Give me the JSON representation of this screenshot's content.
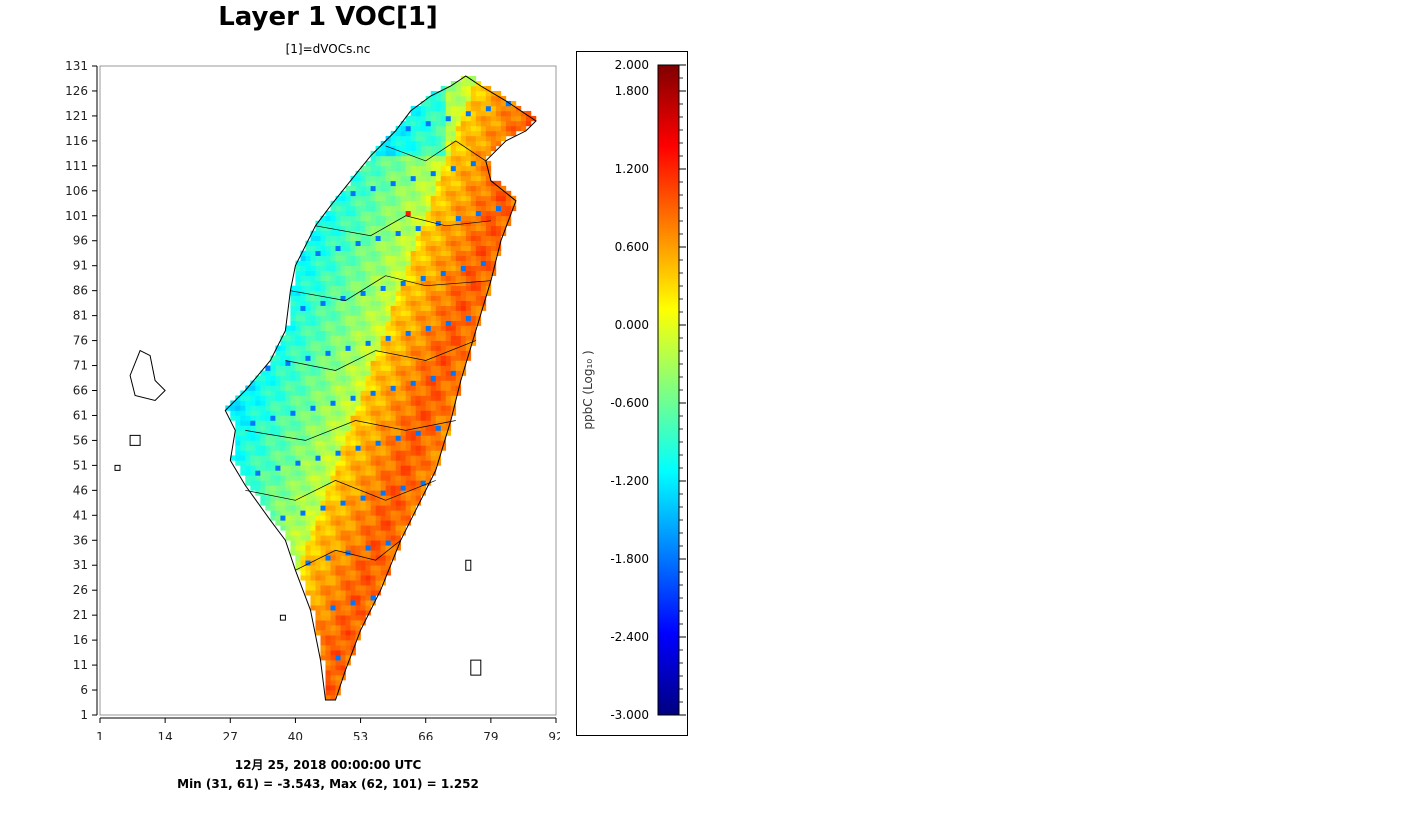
{
  "chart_data": {
    "type": "heatmap",
    "title": "Layer 1 VOC[1]",
    "subtitle": "[1]=dVOCs.nc",
    "x_ticks": [
      "1",
      "14",
      "27",
      "40",
      "53",
      "66",
      "79",
      "92"
    ],
    "y_ticks": [
      "1",
      "6",
      "11",
      "16",
      "21",
      "26",
      "31",
      "36",
      "41",
      "46",
      "51",
      "56",
      "61",
      "66",
      "71",
      "76",
      "81",
      "86",
      "91",
      "96",
      "101",
      "106",
      "111",
      "116",
      "121",
      "126",
      "131"
    ],
    "xlim": [
      1,
      92
    ],
    "ylim": [
      1,
      131
    ],
    "colorbar": {
      "label": "ppbC (Log₁₀ )",
      "range": [
        -3.0,
        2.0
      ],
      "ticks": [
        "2.000",
        "1.800",
        "1.200",
        "0.600",
        "0.000",
        "-0.600",
        "-1.200",
        "-1.800",
        "-2.400",
        "-3.000"
      ],
      "tick_values": [
        2.0,
        1.8,
        1.2,
        0.6,
        0.0,
        -0.6,
        -1.2,
        -1.8,
        -2.4,
        -3.0
      ],
      "colors": [
        "#000080",
        "#0000ff",
        "#0080ff",
        "#00ffff",
        "#80ff80",
        "#ffff00",
        "#ff8000",
        "#ff0000",
        "#800000"
      ]
    },
    "footer_time": "12月 25, 2018 00:00:00 UTC",
    "footer_stats": "Min (31, 61) = -3.543, Max (62, 101) = 1.252",
    "min": {
      "x": 31,
      "y": 61,
      "value": -3.543
    },
    "max": {
      "x": 62,
      "y": 101,
      "value": 1.252
    }
  }
}
